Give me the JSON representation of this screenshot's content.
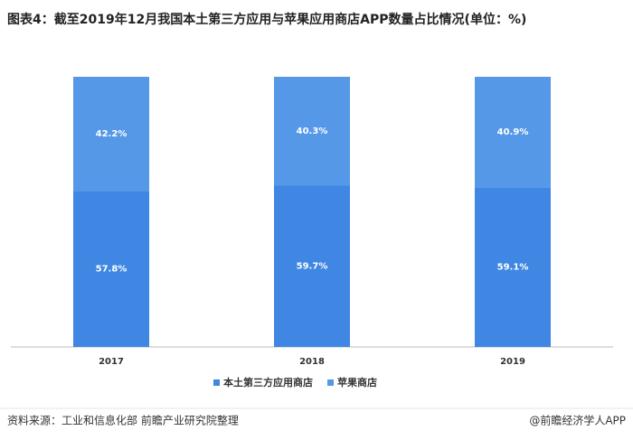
{
  "chart_data": {
    "type": "stacked_bar",
    "title": "图表4：截至2019年12月我国本土第三方应用与苹果应用商店APP数量占比情况(单位：%)",
    "categories": [
      "2017",
      "2018",
      "2019"
    ],
    "series": [
      {
        "name": "本土第三方应用商店",
        "color": "#3f87e3",
        "values": [
          57.8,
          59.7,
          59.1
        ],
        "value_labels": [
          "57.8%",
          "59.7%",
          "59.1%"
        ]
      },
      {
        "name": "苹果商店",
        "color": "#5598e8",
        "values": [
          42.2,
          40.3,
          40.9
        ],
        "value_labels": [
          "42.2%",
          "40.3%",
          "40.9%"
        ]
      }
    ],
    "ylim": [
      0,
      100
    ],
    "legend": "bottom",
    "source": "资料来源：工业和信息化部 前瞻产业研究院整理",
    "credit": "@前瞻经济学人APP"
  }
}
